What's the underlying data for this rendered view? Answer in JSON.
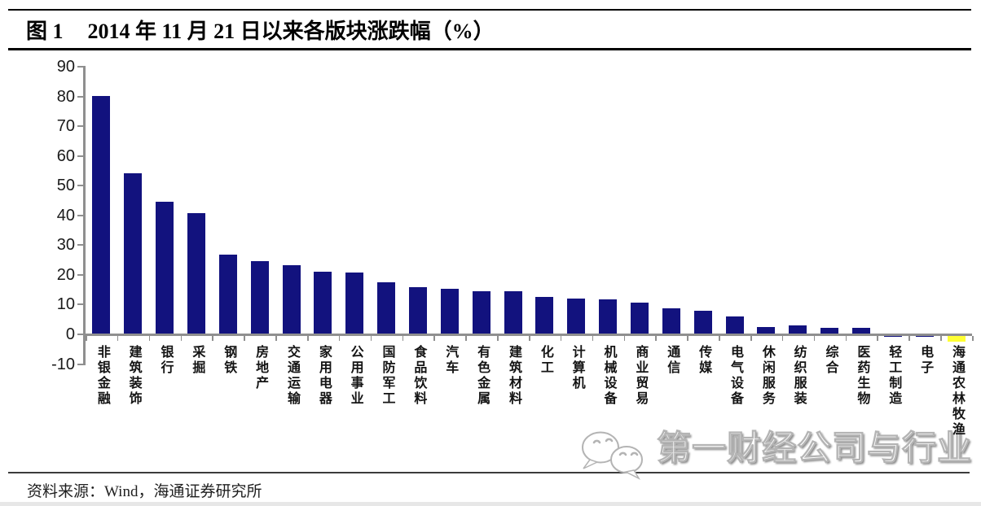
{
  "figure": {
    "label": "图 1",
    "title": "2014 年 11 月 21 日以来各版块涨跌幅（%）"
  },
  "chart_data": {
    "type": "bar",
    "title": "2014 年 11 月 21 日以来各版块涨跌幅（%）",
    "categories": [
      "非银金融",
      "建筑装饰",
      "银行",
      "采掘",
      "钢铁",
      "房地产",
      "交通运输",
      "家用电器",
      "公用事业",
      "国防军工",
      "食品饮料",
      "汽车",
      "有色金属",
      "建筑材料",
      "化工",
      "计算机",
      "机械设备",
      "商业贸易",
      "通信",
      "传媒",
      "电气设备",
      "休闲服务",
      "纺织服装",
      "综合",
      "医药生物",
      "轻工制造",
      "电子",
      "海通农林牧渔"
    ],
    "values": [
      80.2,
      54.2,
      44.6,
      40.8,
      26.7,
      24.7,
      23.4,
      21.0,
      20.8,
      17.6,
      15.8,
      15.2,
      14.5,
      14.4,
      12.6,
      12.1,
      11.9,
      10.7,
      8.7,
      8.0,
      6.0,
      2.6,
      2.9,
      2.1,
      2.3,
      -0.8,
      -0.8,
      -2.4
    ],
    "xlabel": "",
    "ylabel": "",
    "ylim": [
      -10,
      90
    ],
    "yticks": [
      90,
      80,
      70,
      60,
      50,
      40,
      30,
      20,
      10,
      0,
      -10
    ],
    "grid": false,
    "legend": null,
    "bar_color": "#12127E",
    "highlight_color": "#FFFF33",
    "highlight_index": 27,
    "axis_color": "#8F8F8F"
  },
  "watermark": {
    "text": "第一财经公司与行业",
    "logo": "speech-bubbles-logo"
  },
  "source": {
    "text": "资料来源：Wind，海通证券研究所"
  }
}
